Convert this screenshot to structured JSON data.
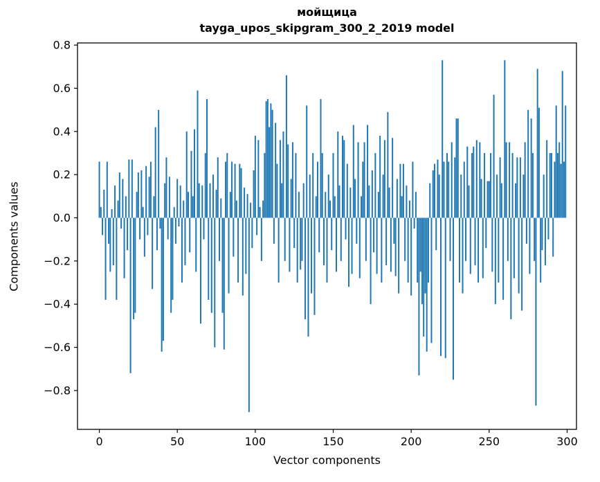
{
  "accent_color": "#1f77b4",
  "chart_data": {
    "type": "bar",
    "title": "мойщица",
    "subtitle": "tayga_upos_skipgram_300_2_2019 model",
    "xlabel": "Vector components",
    "ylabel": "Components values",
    "bar_color": "#1f77b4",
    "xlim": [
      -14,
      306
    ],
    "ylim": [
      -0.98,
      0.81
    ],
    "grid": false,
    "legend": null,
    "x_ticks": {
      "values": [
        0,
        50,
        100,
        150,
        200,
        250,
        300
      ],
      "labels": [
        "0",
        "50",
        "100",
        "150",
        "200",
        "250",
        "300"
      ]
    },
    "y_ticks": {
      "values": [
        0.8,
        0.6,
        0.4,
        0.2,
        0.0,
        -0.2,
        -0.4,
        -0.6,
        -0.8
      ],
      "labels": [
        "0.8",
        "0.6",
        "0.4",
        "0.2",
        "0.0",
        "−0.2",
        "−0.4",
        "−0.6",
        "−0.8"
      ]
    },
    "x_start": 0,
    "values": [
      0.26,
      0.05,
      -0.08,
      0.13,
      -0.38,
      0.26,
      -0.12,
      -0.25,
      0.04,
      -0.22,
      0.15,
      -0.38,
      0.08,
      0.21,
      -0.05,
      0.18,
      -0.28,
      0.1,
      -0.15,
      0.27,
      -0.72,
      0.27,
      -0.47,
      -0.44,
      0.12,
      0.21,
      -0.1,
      0.22,
      0.05,
      -0.18,
      0.24,
      -0.08,
      0.19,
      0.26,
      -0.33,
      0.1,
      0.42,
      -0.15,
      0.5,
      -0.05,
      -0.62,
      -0.57,
      0.16,
      0.28,
      -0.1,
      0.19,
      -0.44,
      -0.38,
      0.05,
      -0.12,
      0.18,
      -0.04,
      0.15,
      -0.3,
      0.08,
      -0.22,
      0.4,
      0.12,
      -0.16,
      0.31,
      0.1,
      0.41,
      -0.25,
      0.59,
      0.16,
      -0.49,
      0.15,
      -0.1,
      0.3,
      0.55,
      -0.38,
      0.16,
      -0.44,
      0.2,
      -0.6,
      0.13,
      0.28,
      -0.2,
      0.09,
      -0.44,
      -0.61,
      0.26,
      0.3,
      -0.35,
      0.12,
      0.26,
      -0.18,
      0.25,
      0.08,
      -0.3,
      0.25,
      0.23,
      -0.36,
      0.14,
      -0.26,
      0.11,
      -0.9,
      0.07,
      -0.14,
      0.22,
      0.38,
      -0.08,
      0.36,
      0.05,
      -0.2,
      0.08,
      0.3,
      0.54,
      0.55,
      0.42,
      0.53,
      0.5,
      -0.12,
      0.44,
      0.25,
      -0.3,
      0.36,
      0.16,
      0.4,
      -0.2,
      0.66,
      0.34,
      -0.25,
      0.18,
      0.35,
      -0.14,
      0.3,
      -0.3,
      0.12,
      -0.24,
      -0.2,
      0.16,
      -0.47,
      0.52,
      -0.55,
      0.2,
      -0.35,
      0.3,
      -0.45,
      0.1,
      0.26,
      -0.16,
      0.55,
      0.3,
      -0.22,
      0.12,
      -0.3,
      0.2,
      0.08,
      -0.15,
      0.3,
      0.1,
      -0.25,
      0.4,
      0.15,
      -0.2,
      0.38,
      0.36,
      -0.1,
      0.25,
      -0.32,
      0.14,
      -0.26,
      0.43,
      0.18,
      -0.12,
      0.35,
      -0.28,
      0.1,
      0.26,
      0.35,
      -0.2,
      0.43,
      0.15,
      -0.4,
      0.22,
      -0.16,
      0.3,
      -0.26,
      0.12,
      0.38,
      -0.3,
      0.2,
      0.36,
      -0.22,
      0.49,
      0.14,
      -0.25,
      0.37,
      -0.12,
      -0.27,
      0.18,
      -0.35,
      0.25,
      0.1,
      0.25,
      -0.2,
      0.15,
      -0.3,
      0.08,
      -0.36,
      0.26,
      -0.05,
      0.12,
      -0.3,
      -0.73,
      -0.25,
      -0.4,
      -0.55,
      -0.35,
      -0.62,
      -0.3,
      0.16,
      -0.58,
      0.22,
      0.25,
      -0.15,
      0.27,
      0.2,
      -0.64,
      0.73,
      0.26,
      -0.65,
      0.3,
      0.26,
      -0.2,
      0.35,
      -0.75,
      0.28,
      0.46,
      0.46,
      -0.3,
      0.2,
      -0.35,
      0.26,
      -0.2,
      0.33,
      0.15,
      -0.26,
      0.3,
      0.33,
      -0.22,
      0.36,
      -0.3,
      0.35,
      0.18,
      -0.28,
      0.3,
      -0.14,
      0.17,
      0.17,
      0.3,
      -0.25,
      0.57,
      -0.4,
      0.2,
      -0.3,
      0.28,
      0.16,
      -0.38,
      0.73,
      0.35,
      -0.2,
      0.35,
      -0.47,
      0.3,
      -0.28,
      0.16,
      0.28,
      -0.35,
      0.28,
      -0.43,
      0.2,
      0.35,
      -0.12,
      0.5,
      -0.26,
      0.46,
      0.3,
      -0.2,
      -0.87,
      0.69,
      0.51,
      -0.3,
      -0.15,
      0.2,
      -0.22,
      0.36,
      -0.1,
      0.3,
      0.3,
      -0.18,
      0.26,
      0.52,
      0.3,
      0.35,
      0.25,
      0.68,
      0.26,
      0.52
    ]
  }
}
